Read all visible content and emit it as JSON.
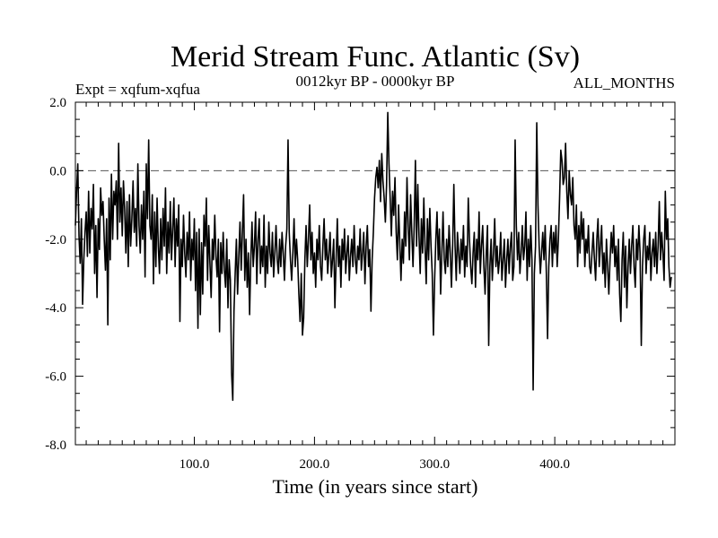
{
  "chart_data": {
    "type": "line",
    "title": "Merid Stream Func. Atlantic (Sv)",
    "subtitle_left": "Expt = xqfum-xqfua",
    "subtitle_center": "0012kyr BP - 0000kyr BP",
    "subtitle_right": "ALL_MONTHS",
    "xlabel": "Time (in years since start)",
    "ylabel": "",
    "xlim": [
      1,
      500
    ],
    "ylim": [
      -8.0,
      2.0
    ],
    "x_major_ticks": [
      100.0,
      200.0,
      300.0,
      400.0
    ],
    "x_tick_labels": [
      "100.0",
      "200.0",
      "300.0",
      "400.0"
    ],
    "y_major_ticks": [
      -8.0,
      -6.0,
      -4.0,
      -2.0,
      0.0,
      2.0
    ],
    "y_tick_labels": [
      "-8.0",
      "-6.0",
      "-4.0",
      "-2.0",
      "0.0",
      "2.0"
    ],
    "reference_line": {
      "y": 0.0,
      "style": "dashed"
    },
    "grid": false,
    "series": [
      {
        "name": "xqfum-xqfua",
        "x_start": 1,
        "x_step": 1,
        "values": [
          -1.6,
          -0.6,
          0.2,
          -1.9,
          -2.7,
          -1.4,
          -3.9,
          -2.6,
          -1.8,
          -1.2,
          -2.5,
          -0.6,
          -2.4,
          -1.1,
          -1.7,
          -0.4,
          -3.0,
          -1.6,
          -3.7,
          -1.4,
          -2.3,
          -0.5,
          -1.3,
          -0.9,
          -2.0,
          -2.9,
          -1.4,
          -4.5,
          -0.8,
          -2.6,
          -0.1,
          -2.0,
          -0.6,
          -1.0,
          -0.3,
          -2.0,
          0.8,
          -1.5,
          -0.5,
          -1.9,
          -0.3,
          -1.1,
          -2.4,
          -0.9,
          -2.8,
          -0.7,
          -2.2,
          -1.4,
          -0.3,
          -1.8,
          -1.1,
          -2.2,
          0.2,
          -1.6,
          -2.4,
          -1.0,
          -2.0,
          -0.6,
          -3.1,
          0.2,
          -1.4,
          0.9,
          -1.6,
          -2.0,
          -0.7,
          -3.3,
          -1.2,
          -2.8,
          -0.8,
          -2.2,
          -3.0,
          -1.4,
          -2.6,
          -1.1,
          -2.2,
          -0.5,
          -3.0,
          -1.5,
          -2.4,
          -0.9,
          -2.6,
          -1.7,
          -0.8,
          -2.8,
          -1.4,
          -2.2,
          -1.0,
          -4.4,
          -2.0,
          -2.8,
          -1.3,
          -2.4,
          -3.1,
          -1.8,
          -2.6,
          -1.2,
          -3.2,
          -2.0,
          -2.6,
          -1.4,
          -3.5,
          -1.8,
          -4.6,
          -1.7,
          -4.2,
          -2.1,
          -3.6,
          -1.3,
          -2.2,
          -0.8,
          -3.2,
          -1.6,
          -2.7,
          -3.7,
          -2.0,
          -2.6,
          -1.3,
          -2.5,
          -3.1,
          -2.0,
          -4.7,
          -2.1,
          -3.0,
          -1.8,
          -2.9,
          -3.4,
          -2.0,
          -4.0,
          -2.6,
          -3.2,
          -5.9,
          -6.7,
          -4.1,
          -3.0,
          -2.0,
          -3.6,
          -2.5,
          -1.5,
          -2.9,
          -1.8,
          -0.7,
          -3.2,
          -2.0,
          -3.4,
          -2.4,
          -4.2,
          -2.6,
          -1.5,
          -2.8,
          -2.2,
          -1.2,
          -3.3,
          -2.0,
          -1.4,
          -3.0,
          -2.2,
          -2.8,
          -1.3,
          -3.4,
          -2.2,
          -3.0,
          -1.5,
          -2.4,
          -2.8,
          -1.8,
          -3.1,
          -2.4,
          -1.6,
          -2.6,
          -3.0,
          -2.0,
          -2.8,
          -1.8,
          -2.4,
          -3.2,
          -2.2,
          -1.7,
          0.9,
          -1.8,
          -2.6,
          -3.2,
          -2.4,
          -1.4,
          -2.8,
          -2.0,
          -2.6,
          -3.6,
          -4.4,
          -3.0,
          -4.8,
          -4.3,
          -2.6,
          -1.6,
          -2.8,
          -2.0,
          -1.0,
          -2.6,
          -1.8,
          -3.0,
          -2.4,
          -3.4,
          -2.0,
          -2.6,
          -1.6,
          -2.8,
          -3.2,
          -2.2,
          -1.4,
          -2.6,
          -2.0,
          -3.0,
          -2.4,
          -1.8,
          -3.1,
          -2.6,
          -2.0,
          -4.0,
          -2.6,
          -1.4,
          -2.8,
          -2.2,
          -3.4,
          -2.0,
          -2.6,
          -1.7,
          -3.0,
          -2.4,
          -1.9,
          -3.2,
          -2.5,
          -2.0,
          -2.8,
          -1.6,
          -2.6,
          -3.0,
          -2.2,
          -2.6,
          -1.7,
          -2.9,
          -2.4,
          -1.8,
          -3.3,
          -2.2,
          -1.6,
          -2.8,
          -2.3,
          -4.1,
          -2.6,
          -1.8,
          -0.8,
          -0.2,
          0.1,
          -0.5,
          0.3,
          -0.9,
          0.5,
          -0.3,
          -0.8,
          -1.5,
          -0.4,
          1.7,
          0.2,
          -0.8,
          -1.9,
          -0.6,
          -1.3,
          -0.2,
          -1.8,
          -2.6,
          -1.0,
          -2.1,
          -3.2,
          -2.0,
          -2.7,
          -1.2,
          -2.2,
          -0.2,
          -1.6,
          -2.6,
          -0.7,
          -1.8,
          -2.8,
          -1.6,
          0.3,
          -2.2,
          -0.4,
          -1.9,
          -3.0,
          -1.4,
          -2.4,
          -0.8,
          -2.2,
          -3.3,
          -1.4,
          -2.6,
          -1.1,
          -2.2,
          -3.0,
          -4.8,
          -3.2,
          -2.0,
          -1.2,
          -2.6,
          -1.7,
          -3.6,
          -2.4,
          -1.2,
          -2.6,
          -3.0,
          -2.0,
          -2.8,
          -1.6,
          -2.4,
          -3.4,
          -2.2,
          -0.4,
          -2.2,
          -3.2,
          -1.8,
          -2.4,
          -3.0,
          -2.0,
          -2.6,
          -1.6,
          -3.1,
          -2.2,
          -2.8,
          -0.8,
          -2.0,
          -2.8,
          -3.3,
          -2.4,
          -1.8,
          -3.4,
          -2.0,
          -2.6,
          -1.2,
          -3.0,
          -2.2,
          -1.6,
          -2.8,
          -3.6,
          -2.4,
          -1.6,
          -5.1,
          -2.8,
          -2.0,
          -3.2,
          -2.4,
          -1.4,
          -2.8,
          -2.2,
          -3.0,
          -2.6,
          -1.8,
          -3.2,
          -2.6,
          -2.0,
          -3.4,
          -2.6,
          -2.0,
          -3.0,
          -2.2,
          -1.8,
          -3.2,
          -2.8,
          0.9,
          -1.6,
          -2.6,
          -1.8,
          -3.0,
          -2.4,
          -1.6,
          -2.6,
          -2.2,
          -1.2,
          -3.2,
          -2.0,
          -2.8,
          -1.6,
          -2.6,
          -6.4,
          -3.0,
          -2.2,
          1.4,
          -1.0,
          -2.2,
          -3.0,
          -2.4,
          -1.8,
          -2.6,
          -1.6,
          -3.0,
          -4.9,
          -2.8,
          -2.0,
          -1.6,
          -2.8,
          -1.8,
          -2.4,
          -1.6,
          -2.8,
          -2.0,
          -0.8,
          0.6,
          0.3,
          -0.4,
          -0.2,
          0.8,
          -0.6,
          -1.4,
          0.0,
          -0.7,
          -1.0,
          -0.2,
          -1.6,
          -2.0,
          -1.0,
          -2.8,
          -1.6,
          -2.4,
          -1.2,
          -2.0,
          -1.4,
          -2.8,
          -2.0,
          -2.4,
          -1.6,
          -2.8,
          -3.0,
          -2.4,
          -1.8,
          -2.6,
          -3.2,
          -2.0,
          -1.4,
          -2.8,
          -2.2,
          -1.6,
          -3.0,
          -2.4,
          -3.4,
          -2.0,
          -2.8,
          -3.6,
          -2.6,
          -1.8,
          -2.4,
          -1.6,
          -2.8,
          -2.2,
          -3.2,
          -2.0,
          -3.6,
          -4.4,
          -2.6,
          -1.8,
          -3.4,
          -2.2,
          -4.0,
          -2.8,
          -2.0,
          -3.0,
          -2.2,
          -1.6,
          -2.8,
          -3.4,
          -2.0,
          -2.6,
          -1.6,
          -2.4,
          -5.1,
          -2.8,
          -2.0,
          -1.6,
          -3.0,
          -2.2,
          -2.6,
          -1.8,
          -3.2,
          -2.4,
          -2.0,
          -2.8,
          -1.8,
          -3.0,
          -2.2,
          -0.9,
          -2.6,
          -1.8,
          -2.4,
          -3.2,
          -0.6,
          -2.0,
          -1.4,
          -2.8,
          -3.4,
          -3.1
        ]
      }
    ]
  }
}
